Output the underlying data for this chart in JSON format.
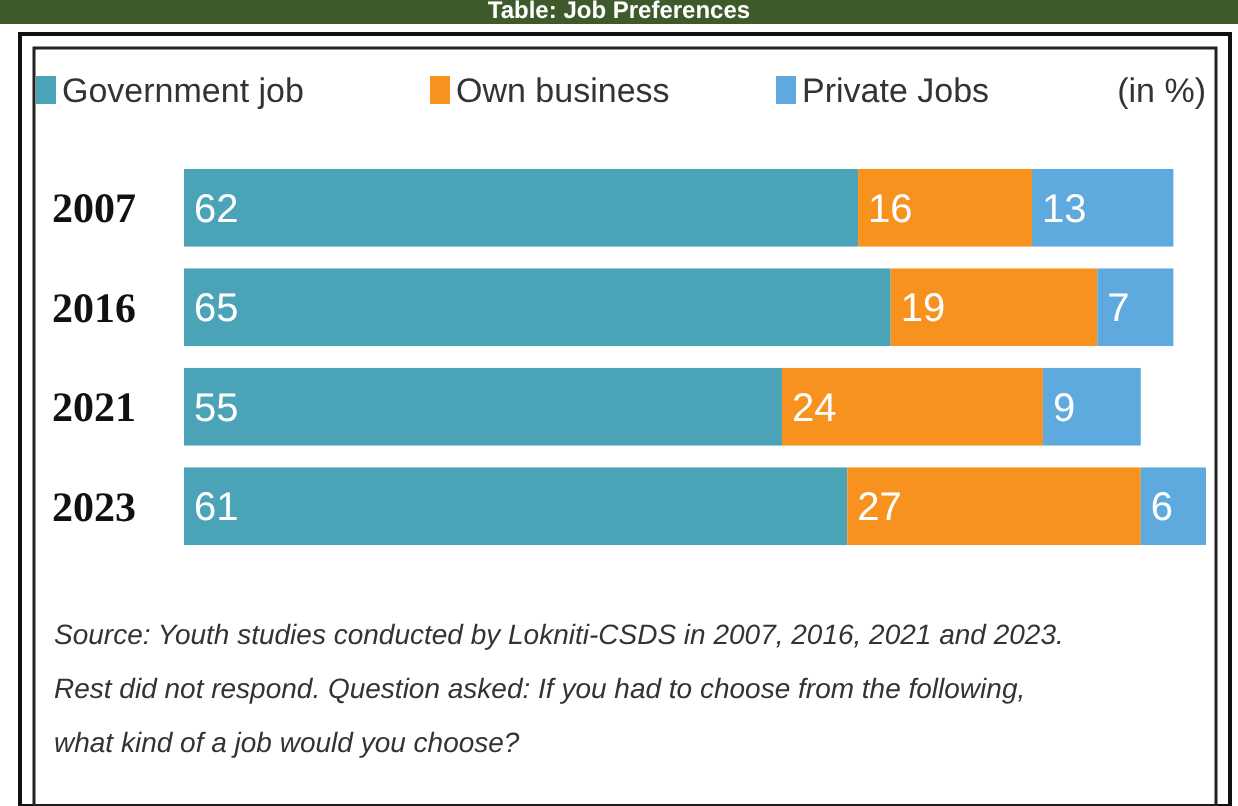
{
  "chart_data": {
    "type": "bar",
    "orientation": "horizontal",
    "stacked": true,
    "title": "Table: Job Preferences",
    "categories": [
      "2007",
      "2016",
      "2021",
      "2023"
    ],
    "series": [
      {
        "name": "Government job",
        "color": "#4ba3b8",
        "values": [
          62,
          65,
          55,
          61
        ]
      },
      {
        "name": "Own business",
        "color": "#f7921e",
        "values": [
          16,
          19,
          24,
          27
        ]
      },
      {
        "name": "Private Jobs",
        "color": "#5ea9de",
        "values": [
          13,
          7,
          9,
          6
        ]
      }
    ],
    "data_labels": true,
    "legend": "top",
    "annotations": [
      "(in %)",
      "Source: Youth studies conducted by Lokniti-CSDS in 2007, 2016, 2021 and 2023.",
      "Rest did not respond. Question asked: If you had to choose from the following,",
      "what kind of a job would you choose?"
    ]
  }
}
